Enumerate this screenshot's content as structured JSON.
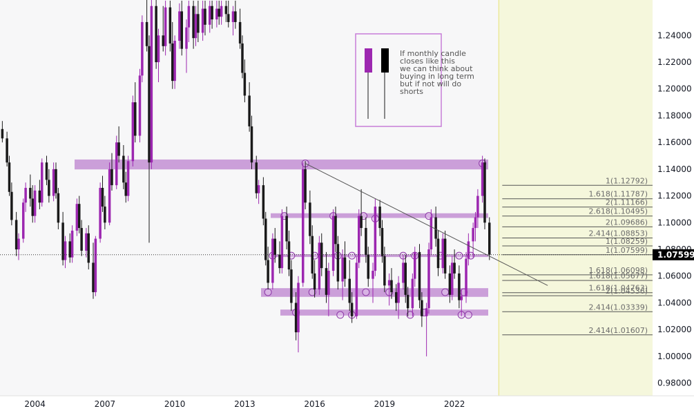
{
  "chart_data": {
    "type": "candlestick",
    "title": "",
    "timeframe": "monthly",
    "colors": {
      "up": "#9c27b0",
      "down": "#1a1a1a",
      "zone": "#c38fd4",
      "future_bg": "#f5f7dc",
      "price_label_bg": "#000000"
    },
    "x_axis": {
      "labels": [
        "2004",
        "2007",
        "2010",
        "2013",
        "2016",
        "2019",
        "2022"
      ],
      "range": [
        2002.5,
        2030.5
      ]
    },
    "y_axis": {
      "labels": [
        "1.24000",
        "1.22000",
        "1.20000",
        "1.18000",
        "1.16000",
        "1.14000",
        "1.12000",
        "1.10000",
        "1.08000",
        "1.06000",
        "1.04000",
        "1.02000",
        "1.00000",
        "0.98000"
      ],
      "range": [
        0.9705,
        1.2665
      ]
    },
    "last_price": {
      "value": 1.07599,
      "label": "1.07599"
    },
    "zones": [
      {
        "from": 1.1398,
        "to": 1.1472
      },
      {
        "from": 1.1035,
        "to": 1.107
      },
      {
        "from": 1.0743,
        "to": 1.0763
      },
      {
        "from": 1.0445,
        "to": 1.051
      },
      {
        "from": 1.0305,
        "to": 1.035
      }
    ],
    "trendline": {
      "start": [
        2015.6,
        1.1443
      ],
      "end": [
        2026.0,
        1.053
      ]
    },
    "fib_levels": [
      {
        "value": 1.12792,
        "label": "1(1.12792)"
      },
      {
        "value": 1.11787,
        "label": "1.618(1.11787)"
      },
      {
        "value": 1.11166,
        "label": "2(1.11166)"
      },
      {
        "value": 1.10495,
        "label": "2.618(1.10495)"
      },
      {
        "value": 1.09686,
        "label": "2(1.09686)"
      },
      {
        "value": 1.08853,
        "label": "2.414(1.08853)"
      },
      {
        "value": 1.08259,
        "label": "1(1.08259)"
      },
      {
        "value": 1.07599,
        "label": "1(1.07599)"
      },
      {
        "value": 1.06098,
        "label": "1.618(1.06098)"
      },
      {
        "value": 1.05677,
        "label": "1.618(1.05677)"
      },
      {
        "value": 1.04763,
        "label": "1.618(1.04763)"
      },
      {
        "value": 1.04536,
        "label": "2(1.04536)"
      },
      {
        "value": 1.03339,
        "label": "2.414(1.03339)"
      },
      {
        "value": 1.01607,
        "label": "2.414(1.01607)"
      }
    ],
    "candles": [
      [
        2002.6,
        1.17,
        1.176,
        1.16,
        1.163
      ],
      [
        2002.8,
        1.163,
        1.168,
        1.142,
        1.145
      ],
      [
        2002.9,
        1.145,
        1.15,
        1.12,
        1.123
      ],
      [
        2003.0,
        1.123,
        1.13,
        1.098,
        1.102
      ],
      [
        2003.2,
        1.102,
        1.108,
        1.075,
        1.08
      ],
      [
        2003.3,
        1.08,
        1.092,
        1.072,
        1.088
      ],
      [
        2003.5,
        1.088,
        1.118,
        1.085,
        1.115
      ],
      [
        2003.6,
        1.115,
        1.13,
        1.108,
        1.126
      ],
      [
        2003.8,
        1.126,
        1.136,
        1.112,
        1.118
      ],
      [
        2003.9,
        1.118,
        1.128,
        1.1,
        1.105
      ],
      [
        2004.0,
        1.105,
        1.128,
        1.1,
        1.124
      ],
      [
        2004.2,
        1.124,
        1.132,
        1.11,
        1.115
      ],
      [
        2004.3,
        1.115,
        1.148,
        1.112,
        1.145
      ],
      [
        2004.5,
        1.145,
        1.15,
        1.128,
        1.132
      ],
      [
        2004.6,
        1.132,
        1.14,
        1.115,
        1.12
      ],
      [
        2004.8,
        1.12,
        1.145,
        1.116,
        1.14
      ],
      [
        2004.9,
        1.14,
        1.145,
        1.118,
        1.122
      ],
      [
        2005.0,
        1.122,
        1.126,
        1.095,
        1.1
      ],
      [
        2005.2,
        1.1,
        1.108,
        1.068,
        1.072
      ],
      [
        2005.3,
        1.072,
        1.09,
        1.066,
        1.086
      ],
      [
        2005.5,
        1.086,
        1.092,
        1.07,
        1.074
      ],
      [
        2005.6,
        1.074,
        1.098,
        1.07,
        1.094
      ],
      [
        2005.8,
        1.094,
        1.118,
        1.09,
        1.114
      ],
      [
        2005.9,
        1.114,
        1.12,
        1.092,
        1.096
      ],
      [
        2006.0,
        1.096,
        1.102,
        1.075,
        1.079
      ],
      [
        2006.2,
        1.079,
        1.096,
        1.074,
        1.092
      ],
      [
        2006.3,
        1.092,
        1.098,
        1.065,
        1.07
      ],
      [
        2006.5,
        1.07,
        1.085,
        1.043,
        1.048
      ],
      [
        2006.6,
        1.048,
        1.09,
        1.045,
        1.088
      ],
      [
        2006.8,
        1.088,
        1.13,
        1.085,
        1.126
      ],
      [
        2006.9,
        1.126,
        1.135,
        1.108,
        1.112
      ],
      [
        2007.0,
        1.112,
        1.12,
        1.095,
        1.1
      ],
      [
        2007.2,
        1.1,
        1.145,
        1.098,
        1.14
      ],
      [
        2007.3,
        1.14,
        1.152,
        1.124,
        1.128
      ],
      [
        2007.5,
        1.128,
        1.165,
        1.125,
        1.16
      ],
      [
        2007.6,
        1.16,
        1.172,
        1.145,
        1.15
      ],
      [
        2007.8,
        1.15,
        1.158,
        1.125,
        1.13
      ],
      [
        2007.9,
        1.13,
        1.138,
        1.115,
        1.12
      ],
      [
        2008.0,
        1.12,
        1.15,
        1.116,
        1.146
      ],
      [
        2008.2,
        1.146,
        1.195,
        1.142,
        1.19
      ],
      [
        2008.3,
        1.19,
        1.205,
        1.16,
        1.165
      ],
      [
        2008.5,
        1.165,
        1.215,
        1.16,
        1.21
      ],
      [
        2008.6,
        1.21,
        1.255,
        1.205,
        1.25
      ],
      [
        2008.8,
        1.25,
        1.268,
        1.228,
        1.232
      ],
      [
        2008.9,
        1.232,
        1.24,
        1.085,
        1.145
      ],
      [
        2009.0,
        1.145,
        1.268,
        1.14,
        1.262
      ],
      [
        2009.2,
        1.262,
        1.268,
        1.215,
        1.22
      ],
      [
        2009.3,
        1.22,
        1.245,
        1.205,
        1.24
      ],
      [
        2009.5,
        1.24,
        1.262,
        1.228,
        1.232
      ],
      [
        2009.6,
        1.232,
        1.266,
        1.225,
        1.261
      ],
      [
        2009.8,
        1.261,
        1.266,
        1.228,
        1.234
      ],
      [
        2009.9,
        1.234,
        1.25,
        1.2,
        1.206
      ],
      [
        2010.0,
        1.206,
        1.24,
        1.2,
        1.236
      ],
      [
        2010.2,
        1.236,
        1.264,
        1.23,
        1.258
      ],
      [
        2010.3,
        1.258,
        1.266,
        1.225,
        1.23
      ],
      [
        2010.5,
        1.23,
        1.252,
        1.212,
        1.246
      ],
      [
        2010.6,
        1.246,
        1.266,
        1.235,
        1.262
      ],
      [
        2010.8,
        1.262,
        1.266,
        1.23,
        1.238
      ],
      [
        2010.9,
        1.238,
        1.262,
        1.232,
        1.256
      ],
      [
        2011.0,
        1.256,
        1.266,
        1.235,
        1.242
      ],
      [
        2011.2,
        1.242,
        1.266,
        1.236,
        1.26
      ],
      [
        2011.3,
        1.26,
        1.266,
        1.24,
        1.248
      ],
      [
        2011.5,
        1.248,
        1.266,
        1.242,
        1.262
      ],
      [
        2011.6,
        1.262,
        1.266,
        1.245,
        1.252
      ],
      [
        2011.8,
        1.252,
        1.266,
        1.246,
        1.26
      ],
      [
        2011.9,
        1.26,
        1.266,
        1.248,
        1.254
      ],
      [
        2012.0,
        1.254,
        1.266,
        1.248,
        1.262
      ],
      [
        2012.2,
        1.262,
        1.266,
        1.25,
        1.256
      ],
      [
        2012.3,
        1.256,
        1.266,
        1.246,
        1.25
      ],
      [
        2012.5,
        1.25,
        1.262,
        1.24,
        1.258
      ],
      [
        2012.6,
        1.258,
        1.266,
        1.245,
        1.25
      ],
      [
        2012.8,
        1.25,
        1.26,
        1.23,
        1.234
      ],
      [
        2012.9,
        1.234,
        1.24,
        1.208,
        1.212
      ],
      [
        2013.0,
        1.212,
        1.222,
        1.19,
        1.195
      ],
      [
        2013.2,
        1.195,
        1.205,
        1.168,
        1.172
      ],
      [
        2013.3,
        1.172,
        1.18,
        1.14,
        1.145
      ],
      [
        2013.5,
        1.145,
        1.15,
        1.118,
        1.122
      ],
      [
        2013.6,
        1.122,
        1.132,
        1.114,
        1.128
      ],
      [
        2013.8,
        1.128,
        1.134,
        1.098,
        1.103
      ],
      [
        2013.9,
        1.103,
        1.108,
        1.068,
        1.072
      ],
      [
        2014.0,
        1.072,
        1.082,
        1.05,
        1.055
      ],
      [
        2014.2,
        1.055,
        1.092,
        1.05,
        1.088
      ],
      [
        2014.3,
        1.088,
        1.096,
        1.07,
        1.076
      ],
      [
        2014.5,
        1.076,
        1.086,
        1.062,
        1.066
      ],
      [
        2014.6,
        1.066,
        1.11,
        1.062,
        1.105
      ],
      [
        2014.8,
        1.105,
        1.112,
        1.08,
        1.086
      ],
      [
        2014.9,
        1.086,
        1.094,
        1.06,
        1.065
      ],
      [
        2015.0,
        1.065,
        1.072,
        1.034,
        1.04
      ],
      [
        2015.2,
        1.04,
        1.048,
        1.012,
        1.018
      ],
      [
        2015.3,
        1.018,
        1.06,
        1.003,
        1.055
      ],
      [
        2015.5,
        1.055,
        1.145,
        1.052,
        1.14
      ],
      [
        2015.6,
        1.14,
        1.146,
        1.11,
        1.115
      ],
      [
        2015.8,
        1.115,
        1.124,
        1.084,
        1.09
      ],
      [
        2015.9,
        1.09,
        1.098,
        1.058,
        1.062
      ],
      [
        2016.0,
        1.062,
        1.072,
        1.044,
        1.05
      ],
      [
        2016.2,
        1.05,
        1.09,
        1.046,
        1.085
      ],
      [
        2016.3,
        1.085,
        1.092,
        1.06,
        1.066
      ],
      [
        2016.5,
        1.066,
        1.078,
        1.04,
        1.046
      ],
      [
        2016.6,
        1.046,
        1.07,
        1.03,
        1.064
      ],
      [
        2016.8,
        1.064,
        1.11,
        1.06,
        1.105
      ],
      [
        2016.9,
        1.105,
        1.112,
        1.078,
        1.084
      ],
      [
        2017.0,
        1.084,
        1.09,
        1.05,
        1.056
      ],
      [
        2017.2,
        1.056,
        1.08,
        1.042,
        1.074
      ],
      [
        2017.3,
        1.074,
        1.086,
        1.052,
        1.058
      ],
      [
        2017.5,
        1.058,
        1.072,
        1.034,
        1.04
      ],
      [
        2017.6,
        1.04,
        1.048,
        1.025,
        1.03
      ],
      [
        2017.8,
        1.03,
        1.075,
        1.028,
        1.07
      ],
      [
        2017.9,
        1.07,
        1.11,
        1.066,
        1.105
      ],
      [
        2018.0,
        1.105,
        1.125,
        1.09,
        1.096
      ],
      [
        2018.2,
        1.096,
        1.104,
        1.07,
        1.076
      ],
      [
        2018.3,
        1.076,
        1.082,
        1.052,
        1.058
      ],
      [
        2018.5,
        1.058,
        1.07,
        1.04,
        1.064
      ],
      [
        2018.6,
        1.064,
        1.118,
        1.06,
        1.112
      ],
      [
        2018.8,
        1.112,
        1.117,
        1.09,
        1.096
      ],
      [
        2018.9,
        1.096,
        1.102,
        1.07,
        1.075
      ],
      [
        2019.0,
        1.075,
        1.082,
        1.048,
        1.053
      ],
      [
        2019.2,
        1.053,
        1.062,
        1.038,
        1.057
      ],
      [
        2019.3,
        1.057,
        1.066,
        1.043,
        1.048
      ],
      [
        2019.5,
        1.048,
        1.054,
        1.034,
        1.04
      ],
      [
        2019.6,
        1.04,
        1.06,
        1.028,
        1.055
      ],
      [
        2019.8,
        1.055,
        1.076,
        1.05,
        1.07
      ],
      [
        2019.9,
        1.07,
        1.076,
        1.04,
        1.046
      ],
      [
        2020.0,
        1.046,
        1.052,
        1.03,
        1.036
      ],
      [
        2020.2,
        1.036,
        1.062,
        1.03,
        1.058
      ],
      [
        2020.3,
        1.058,
        1.082,
        1.052,
        1.078
      ],
      [
        2020.5,
        1.078,
        1.084,
        1.036,
        1.042
      ],
      [
        2020.6,
        1.042,
        1.048,
        1.022,
        1.03
      ],
      [
        2020.8,
        1.03,
        1.04,
        1.0,
        1.036
      ],
      [
        2020.9,
        1.036,
        1.085,
        1.032,
        1.08
      ],
      [
        2021.0,
        1.08,
        1.11,
        1.076,
        1.104
      ],
      [
        2021.2,
        1.104,
        1.112,
        1.082,
        1.088
      ],
      [
        2021.3,
        1.088,
        1.094,
        1.06,
        1.066
      ],
      [
        2021.5,
        1.066,
        1.092,
        1.062,
        1.088
      ],
      [
        2021.6,
        1.088,
        1.094,
        1.058,
        1.062
      ],
      [
        2021.8,
        1.062,
        1.068,
        1.04,
        1.046
      ],
      [
        2021.9,
        1.046,
        1.075,
        1.042,
        1.07
      ],
      [
        2022.0,
        1.07,
        1.08,
        1.058,
        1.062
      ],
      [
        2022.2,
        1.062,
        1.068,
        1.036,
        1.042
      ],
      [
        2022.3,
        1.042,
        1.05,
        1.03,
        1.045
      ],
      [
        2022.5,
        1.045,
        1.078,
        1.04,
        1.073
      ],
      [
        2022.6,
        1.073,
        1.092,
        1.068,
        1.086
      ],
      [
        2022.8,
        1.086,
        1.1,
        1.074,
        1.096
      ],
      [
        2022.9,
        1.096,
        1.108,
        1.086,
        1.104
      ],
      [
        2023.0,
        1.104,
        1.125,
        1.096,
        1.12
      ],
      [
        2023.2,
        1.12,
        1.15,
        1.115,
        1.145
      ],
      [
        2023.3,
        1.145,
        1.148,
        1.095,
        1.1
      ],
      [
        2023.5,
        1.1,
        1.104,
        1.072,
        1.076
      ]
    ],
    "future_start": 2023.9
  },
  "note": {
    "text_lines": [
      "If monthly candle",
      "closes like this",
      "we can think about",
      "buying in long term",
      "but if not will do",
      "shorts"
    ]
  }
}
